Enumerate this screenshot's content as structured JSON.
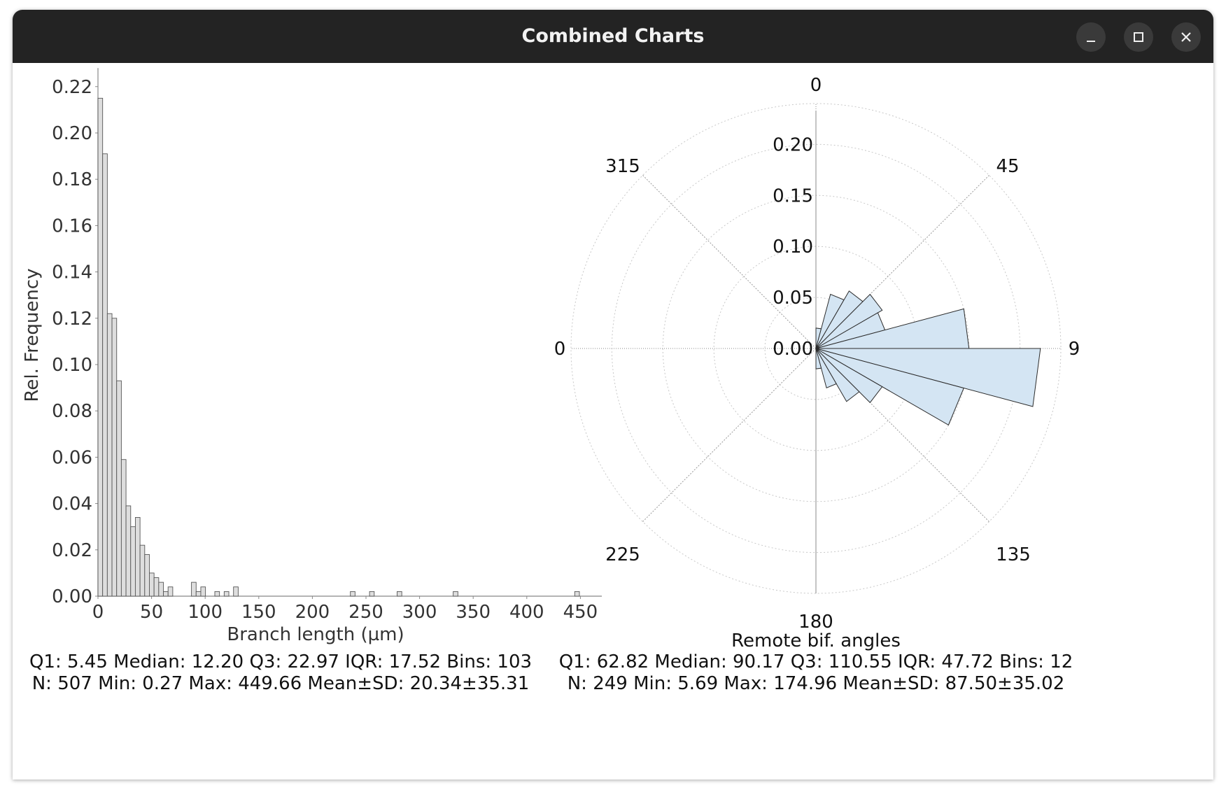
{
  "window": {
    "title": "Combined Charts",
    "buttons": [
      "minimize-icon",
      "maximize-icon",
      "close-icon"
    ]
  },
  "chart_data": [
    {
      "type": "bar",
      "xlabel": "Branch length (µm)",
      "ylabel": "Rel. Frequency",
      "xlim": [
        0,
        470
      ],
      "ylim": [
        0,
        0.225
      ],
      "xticks": [
        0,
        50,
        100,
        150,
        200,
        250,
        300,
        350,
        400,
        450
      ],
      "yticks": [
        0.0,
        0.02,
        0.04,
        0.06,
        0.08,
        0.1,
        0.12,
        0.14,
        0.16,
        0.18,
        0.2,
        0.22
      ],
      "bin_width": 4.36,
      "bins": [
        [
          0,
          0.215
        ],
        [
          4.36,
          0.191
        ],
        [
          8.72,
          0.122
        ],
        [
          13.08,
          0.12
        ],
        [
          17.44,
          0.093
        ],
        [
          21.8,
          0.059
        ],
        [
          26.16,
          0.039
        ],
        [
          30.52,
          0.03
        ],
        [
          34.88,
          0.034
        ],
        [
          39.24,
          0.022
        ],
        [
          43.6,
          0.018
        ],
        [
          47.96,
          0.01
        ],
        [
          52.32,
          0.008
        ],
        [
          56.68,
          0.006
        ],
        [
          61.04,
          0.002
        ],
        [
          65.4,
          0.004
        ],
        [
          87.2,
          0.006
        ],
        [
          91.56,
          0.002
        ],
        [
          95.92,
          0.004
        ],
        [
          109.0,
          0.002
        ],
        [
          117.72,
          0.002
        ],
        [
          126.44,
          0.004
        ],
        [
          235.44,
          0.002
        ],
        [
          253.32,
          0.002
        ],
        [
          279.04,
          0.002
        ],
        [
          331.36,
          0.002
        ],
        [
          444.72,
          0.002
        ]
      ],
      "stats": {
        "line1": "Q1: 5.45  Median: 12.20  Q3: 22.97  IQR: 17.52  Bins: 103",
        "line2": "N: 507  Min: 0.27  Max: 449.66  Mean±SD: 20.34±35.31"
      },
      "colors": {
        "bar": "#dedede",
        "edge": "#555555",
        "text": "#333333"
      }
    },
    {
      "type": "polar-histogram",
      "xlabel": "Remote bif. angles",
      "radial_range": [
        0,
        0.24
      ],
      "radial_ticks": [
        0.0,
        0.05,
        0.1,
        0.15,
        0.2
      ],
      "angle_labels": [
        "0",
        "45",
        "9",
        "135",
        "180",
        "225",
        "0",
        "315"
      ],
      "bins": [
        [
          0,
          15,
          0.02
        ],
        [
          15,
          30,
          0.055
        ],
        [
          30,
          45,
          0.065
        ],
        [
          45,
          60,
          0.075
        ],
        [
          60,
          75,
          0.07
        ],
        [
          75,
          90,
          0.15
        ],
        [
          90,
          105,
          0.22
        ],
        [
          105,
          120,
          0.15
        ],
        [
          120,
          135,
          0.075
        ],
        [
          135,
          150,
          0.06
        ],
        [
          150,
          165,
          0.04
        ],
        [
          165,
          180,
          0.02
        ]
      ],
      "stats": {
        "line1": "Q1: 62.82  Median: 90.17  Q3: 110.55  IQR: 47.72  Bins: 12",
        "line2": "N: 249  Min: 5.69  Max: 174.96  Mean±SD: 87.50±35.02"
      },
      "colors": {
        "fill": "#d4e5f3",
        "edge": "#2b2b2b",
        "grid": "#c8c8c8"
      }
    }
  ]
}
